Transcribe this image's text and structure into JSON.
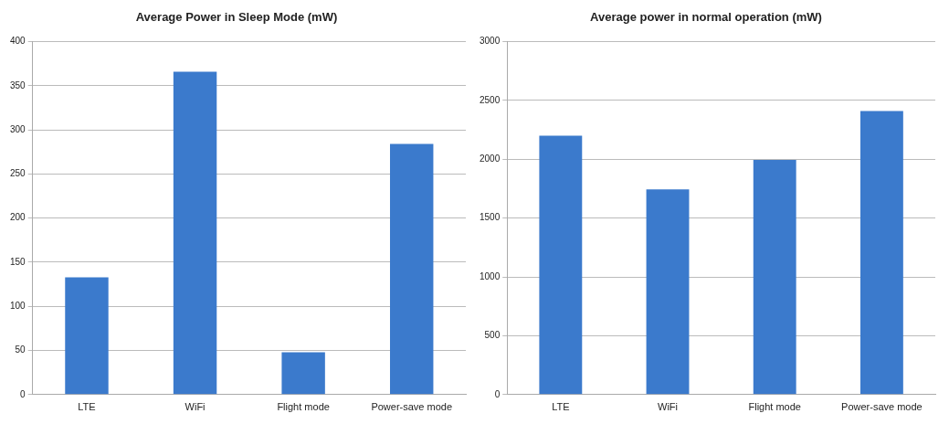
{
  "chart_data": [
    {
      "type": "bar",
      "title": "Average Power in Sleep Mode (mW)",
      "categories": [
        "LTE",
        "WiFi",
        "Flight mode",
        "Power-save mode"
      ],
      "values": [
        133,
        366,
        48,
        284
      ],
      "color": "#3b7acc",
      "ylim": [
        0,
        400
      ],
      "yticks": [
        0,
        50,
        100,
        150,
        200,
        250,
        300,
        350,
        400
      ],
      "grid": "y",
      "legend": false
    },
    {
      "type": "bar",
      "title": "Average power in normal operation (mW)",
      "categories": [
        "LTE",
        "WiFi",
        "Flight mode",
        "Power-save mode"
      ],
      "values": [
        2200,
        1745,
        1995,
        2410
      ],
      "color": "#3b7acc",
      "ylim": [
        0,
        3000
      ],
      "yticks": [
        0,
        500,
        1000,
        1500,
        2000,
        2500,
        3000
      ],
      "grid": "y",
      "legend": false
    }
  ]
}
